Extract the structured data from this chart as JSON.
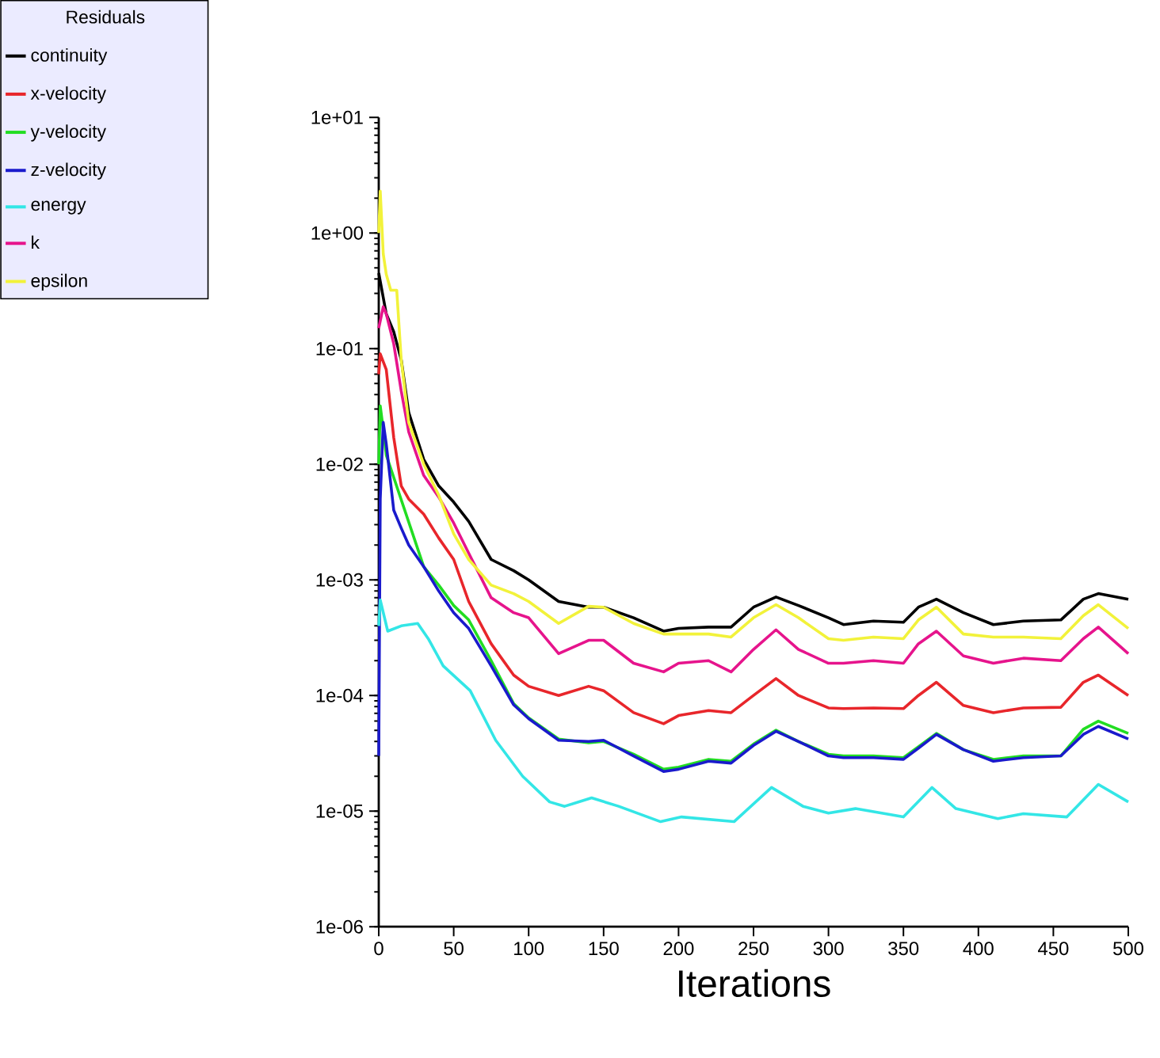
{
  "chart_data": {
    "type": "line",
    "xlabel": "Iterations",
    "legend_title": "Residuals",
    "legend": "top left",
    "log": "y",
    "grid": false,
    "xlim": [
      0,
      500
    ],
    "xticks": [
      0,
      50,
      100,
      150,
      200,
      250,
      300,
      350,
      400,
      450,
      500
    ],
    "ylim": [
      1e-06,
      10
    ],
    "yticks": [
      {
        "value": 1e-06,
        "label": "1e-06"
      },
      {
        "value": 1e-05,
        "label": "1e-05"
      },
      {
        "value": 0.0001,
        "label": "1e-04"
      },
      {
        "value": 0.001,
        "label": "1e-03"
      },
      {
        "value": 0.01,
        "label": "1e-02"
      },
      {
        "value": 0.1,
        "label": "1e-01"
      },
      {
        "value": 1,
        "label": "1e+00"
      },
      {
        "value": 10,
        "label": "1e+01"
      }
    ],
    "series": [
      {
        "name": "continuity",
        "color": "#000000",
        "x": [
          0,
          5,
          10,
          15,
          20,
          30,
          40,
          50,
          60,
          75,
          90,
          100,
          120,
          140,
          150,
          170,
          190,
          200,
          220,
          235,
          250,
          265,
          280,
          300,
          310,
          330,
          350,
          360,
          372,
          390,
          410,
          430,
          455,
          470,
          480,
          500
        ],
        "values": [
          0.45,
          0.2,
          0.14,
          0.08,
          0.028,
          0.011,
          0.0065,
          0.0047,
          0.0032,
          0.0015,
          0.0012,
          0.001,
          0.00065,
          0.00058,
          0.00058,
          0.00047,
          0.00036,
          0.00038,
          0.00039,
          0.00039,
          0.00058,
          0.00071,
          0.0006,
          0.00047,
          0.00041,
          0.00044,
          0.00043,
          0.00058,
          0.00068,
          0.00052,
          0.00041,
          0.00044,
          0.00045,
          0.00068,
          0.00076,
          0.00068
        ]
      },
      {
        "name": "x-velocity",
        "color": "#e8262b",
        "x": [
          0,
          1,
          5,
          10,
          15,
          20,
          30,
          40,
          50,
          60,
          75,
          90,
          100,
          120,
          140,
          150,
          170,
          190,
          200,
          220,
          235,
          250,
          265,
          280,
          300,
          310,
          330,
          350,
          360,
          372,
          390,
          410,
          430,
          455,
          470,
          480,
          500
        ],
        "values": [
          0.06,
          0.09,
          0.066,
          0.017,
          0.0065,
          0.005,
          0.0037,
          0.0023,
          0.0015,
          0.00065,
          0.00028,
          0.00015,
          0.00012,
          0.0001,
          0.00012,
          0.00011,
          7.1e-05,
          5.7e-05,
          6.7e-05,
          7.4e-05,
          7.1e-05,
          0.0001,
          0.00014,
          0.0001,
          7.8e-05,
          7.7e-05,
          7.8e-05,
          7.7e-05,
          0.0001,
          0.00013,
          8.2e-05,
          7.1e-05,
          7.8e-05,
          7.9e-05,
          0.00013,
          0.00015,
          0.0001
        ]
      },
      {
        "name": "y-velocity",
        "color": "#22dd22",
        "x": [
          0,
          1,
          3,
          5,
          10,
          15,
          20,
          30,
          40,
          50,
          60,
          75,
          90,
          100,
          120,
          140,
          150,
          170,
          190,
          200,
          220,
          235,
          250,
          265,
          280,
          300,
          310,
          330,
          350,
          360,
          372,
          390,
          410,
          430,
          455,
          470,
          480,
          500
        ],
        "values": [
          0.01,
          0.032,
          0.02,
          0.012,
          null,
          null,
          null,
          0.0013,
          0.0009,
          0.0006,
          0.00045,
          0.0002,
          8.5e-05,
          6.4e-05,
          4.2e-05,
          3.9e-05,
          4e-05,
          3.1e-05,
          2.3e-05,
          2.4e-05,
          2.8e-05,
          2.7e-05,
          3.8e-05,
          5e-05,
          4e-05,
          3.1e-05,
          3e-05,
          3e-05,
          2.9e-05,
          3.6e-05,
          4.7e-05,
          3.4e-05,
          2.8e-05,
          3e-05,
          3e-05,
          5.1e-05,
          6e-05,
          4.7e-05
        ]
      },
      {
        "name": "z-velocity",
        "color": "#1a1acc",
        "x": [
          0,
          1,
          3,
          5,
          10,
          15,
          20,
          30,
          40,
          50,
          60,
          75,
          90,
          100,
          120,
          140,
          150,
          170,
          190,
          200,
          220,
          235,
          250,
          265,
          280,
          300,
          310,
          330,
          350,
          360,
          372,
          390,
          410,
          430,
          455,
          470,
          480,
          500
        ],
        "values": [
          3e-05,
          0.005,
          0.023,
          0.015,
          0.004,
          0.0028,
          0.002,
          0.0013,
          0.0008,
          0.00052,
          0.00038,
          0.00018,
          8.3e-05,
          6.3e-05,
          4.1e-05,
          4e-05,
          4.1e-05,
          3e-05,
          2.2e-05,
          2.3e-05,
          2.7e-05,
          2.6e-05,
          3.7e-05,
          4.9e-05,
          4e-05,
          3e-05,
          2.9e-05,
          2.9e-05,
          2.8e-05,
          3.5e-05,
          4.6e-05,
          3.4e-05,
          2.7e-05,
          2.9e-05,
          3e-05,
          4.6e-05,
          5.4e-05,
          4.2e-05
        ]
      },
      {
        "name": "energy",
        "color": "#33e6e6",
        "x": [
          0,
          1,
          6,
          15,
          26,
          33,
          43,
          61,
          78,
          96,
          114,
          124,
          142,
          160,
          188,
          202,
          237,
          262,
          283,
          300,
          318,
          350,
          369,
          385,
          413,
          430,
          459,
          480,
          500
        ],
        "values": [
          0.0004,
          0.00067,
          0.00036,
          0.0004,
          0.00042,
          0.00031,
          0.00018,
          0.00011,
          4.1e-05,
          2e-05,
          1.2e-05,
          1.1e-05,
          1.3e-05,
          1.1e-05,
          8.1e-06,
          8.9e-06,
          8.1e-06,
          1.6e-05,
          1.1e-05,
          9.6e-06,
          1.05e-05,
          8.9e-06,
          1.6e-05,
          1.05e-05,
          8.6e-06,
          9.5e-06,
          8.9e-06,
          1.7e-05,
          1.2e-05
        ]
      },
      {
        "name": "k",
        "color": "#e6148c",
        "x": [
          0,
          3,
          5,
          10,
          15,
          20,
          30,
          40,
          50,
          60,
          75,
          90,
          100,
          120,
          140,
          150,
          170,
          190,
          200,
          220,
          235,
          250,
          265,
          280,
          300,
          310,
          330,
          350,
          360,
          372,
          390,
          410,
          430,
          455,
          470,
          480,
          500
        ],
        "values": [
          0.15,
          0.23,
          0.2,
          0.11,
          0.043,
          0.019,
          0.008,
          0.0052,
          0.0031,
          0.0017,
          0.0007,
          0.00052,
          0.00047,
          0.00023,
          0.0003,
          0.0003,
          0.00019,
          0.00016,
          0.00019,
          0.0002,
          0.00016,
          0.00025,
          0.00037,
          0.00025,
          0.00019,
          0.00019,
          0.0002,
          0.00019,
          0.00028,
          0.00036,
          0.00022,
          0.00019,
          0.00021,
          0.0002,
          0.00031,
          0.00039,
          0.00023
        ]
      },
      {
        "name": "epsilon",
        "color": "#f2f23a",
        "x": [
          0,
          1,
          3,
          5,
          8,
          12,
          15,
          20,
          30,
          40,
          50,
          60,
          75,
          90,
          100,
          120,
          140,
          150,
          170,
          190,
          200,
          220,
          235,
          250,
          265,
          280,
          300,
          310,
          330,
          350,
          360,
          372,
          390,
          410,
          430,
          455,
          470,
          480,
          500
        ],
        "values": [
          1.0,
          2.3,
          0.66,
          0.44,
          0.32,
          0.32,
          0.08,
          0.023,
          0.01,
          0.0054,
          0.0025,
          0.0015,
          0.0009,
          0.00076,
          0.00065,
          0.00042,
          0.00059,
          0.00058,
          0.00042,
          0.00034,
          0.00034,
          0.00034,
          0.00032,
          0.00047,
          0.00061,
          0.00047,
          0.00031,
          0.0003,
          0.00032,
          0.00031,
          0.00045,
          0.00058,
          0.00034,
          0.00032,
          0.00032,
          0.00031,
          0.00049,
          0.00061,
          0.00038
        ]
      }
    ]
  }
}
